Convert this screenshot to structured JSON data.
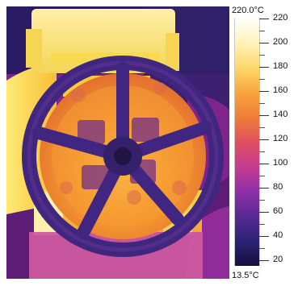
{
  "scale": {
    "top_label": "220.0°C",
    "bottom_label": "13.5°C",
    "ticks": [
      "220",
      "200",
      "180",
      "160",
      "140",
      "120",
      "100",
      "80",
      "60",
      "40",
      "20"
    ]
  },
  "colors": {
    "hot": "#fffefb",
    "warm": "#ffd86a",
    "mid": "#f07d38",
    "cool": "#8f2fa8",
    "cold": "#160f3b"
  }
}
